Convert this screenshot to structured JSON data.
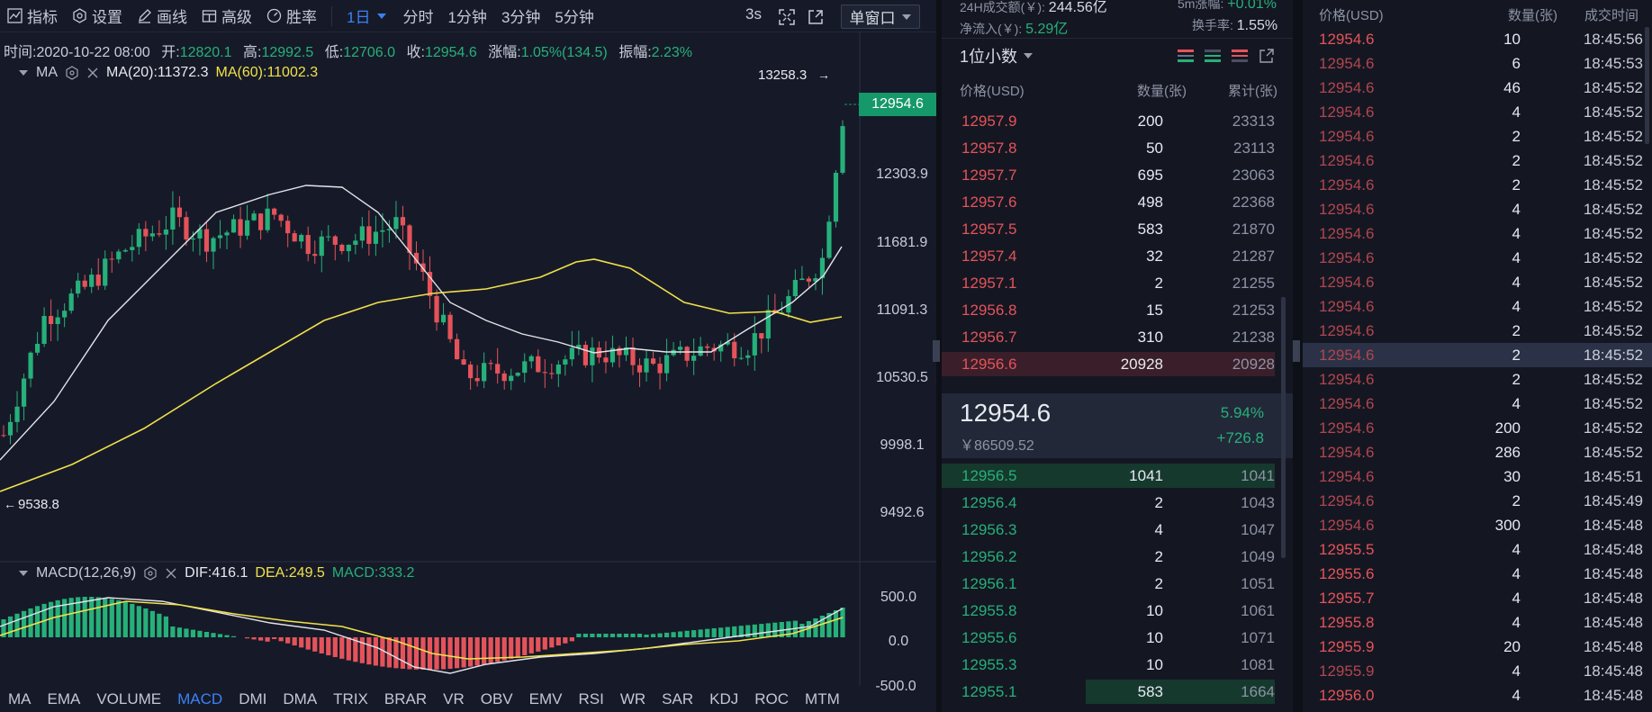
{
  "toolbar": {
    "items": [
      "指标",
      "设置",
      "画线",
      "高级",
      "胜率"
    ],
    "intervals": [
      "1日",
      "分时",
      "1分钟",
      "3分钟",
      "5分钟"
    ],
    "active_interval": "1日",
    "refresh": "3s",
    "window_mode": "单窗口"
  },
  "info": {
    "time_label": "时间:",
    "time": "2020-10-22 08:00",
    "open_label": "开:",
    "open": "12820.1",
    "high_label": "高:",
    "high": "12992.5",
    "low_label": "低:",
    "low": "12706.0",
    "close_label": "收:",
    "close": "12954.6",
    "chg_label": "涨幅:",
    "chg": "1.05%(134.5)",
    "amp_label": "振幅:",
    "amp": "2.23%"
  },
  "ma": {
    "name": "MA",
    "ma20": "MA(20):11372.3",
    "ma60": "MA(60):11002.3"
  },
  "macd_info": {
    "name": "MACD(12,26,9)",
    "dif": "DIF:416.1",
    "dea": "DEA:249.5",
    "macd": "MACD:333.2"
  },
  "price_axis": [
    "12303.9",
    "11681.9",
    "11091.3",
    "10530.5",
    "9998.1",
    "9492.6"
  ],
  "current_price_badge": "12954.6",
  "max_marker": "13258.3",
  "min_marker": "9538.8",
  "macd_axis": [
    "500.0",
    "0.0",
    "-500.0"
  ],
  "indicator_tabs": [
    "MA",
    "EMA",
    "VOLUME",
    "MACD",
    "DMI",
    "DMA",
    "TRIX",
    "BRAR",
    "VR",
    "OBV",
    "EMV",
    "RSI",
    "WR",
    "SAR",
    "KDJ",
    "ROC",
    "MTM"
  ],
  "active_indicator": "MACD",
  "colors": {
    "up": "#26b07a",
    "down": "#e5535a",
    "accent": "#3b82f6",
    "ma20": "#e8e8ee",
    "ma60": "#f2e14b"
  },
  "orderbook": {
    "stats": {
      "vol_label": "24H成交额(￥):",
      "vol": "244.56亿",
      "chg5_label": "5m涨幅:",
      "chg5": "+0.01%",
      "inflow_label": "净流入(￥):",
      "inflow": "5.29亿",
      "turnover_label": "换手率:",
      "turnover": "1.55%"
    },
    "precision": "1位小数",
    "headers": [
      "价格(USD)",
      "数量(张)",
      "累计(张)"
    ],
    "asks": [
      [
        "12957.9",
        "200",
        "23313"
      ],
      [
        "12957.8",
        "50",
        "23113"
      ],
      [
        "12957.7",
        "695",
        "23063"
      ],
      [
        "12957.6",
        "498",
        "22368"
      ],
      [
        "12957.5",
        "583",
        "21870"
      ],
      [
        "12957.4",
        "32",
        "21287"
      ],
      [
        "12957.1",
        "2",
        "21255"
      ],
      [
        "12956.8",
        "15",
        "21253"
      ],
      [
        "12956.7",
        "310",
        "21238"
      ],
      [
        "12956.6",
        "20928",
        "20928"
      ]
    ],
    "last_price": "12954.6",
    "last_cny": "￥86509.52",
    "last_pct": "5.94%",
    "last_change": "+726.8",
    "bids": [
      [
        "12956.5",
        "1041",
        "1041"
      ],
      [
        "12956.4",
        "2",
        "1043"
      ],
      [
        "12956.3",
        "4",
        "1047"
      ],
      [
        "12956.2",
        "2",
        "1049"
      ],
      [
        "12956.1",
        "2",
        "1051"
      ],
      [
        "12955.8",
        "10",
        "1061"
      ],
      [
        "12955.6",
        "10",
        "1071"
      ],
      [
        "12955.3",
        "10",
        "1081"
      ],
      [
        "12955.1",
        "583",
        "1664"
      ]
    ]
  },
  "trades": {
    "headers": [
      "价格(USD)",
      "数量(张)",
      "成交时间"
    ],
    "rows": [
      [
        "12954.6",
        "10",
        "18:45:56"
      ],
      [
        "12954.6",
        "6",
        "18:45:53"
      ],
      [
        "12954.6",
        "46",
        "18:45:52"
      ],
      [
        "12954.6",
        "4",
        "18:45:52"
      ],
      [
        "12954.6",
        "2",
        "18:45:52"
      ],
      [
        "12954.6",
        "2",
        "18:45:52"
      ],
      [
        "12954.6",
        "2",
        "18:45:52"
      ],
      [
        "12954.6",
        "4",
        "18:45:52"
      ],
      [
        "12954.6",
        "4",
        "18:45:52"
      ],
      [
        "12954.6",
        "4",
        "18:45:52"
      ],
      [
        "12954.6",
        "4",
        "18:45:52"
      ],
      [
        "12954.6",
        "4",
        "18:45:52"
      ],
      [
        "12954.6",
        "2",
        "18:45:52"
      ],
      [
        "12954.6",
        "2",
        "18:45:52"
      ],
      [
        "12954.6",
        "2",
        "18:45:52"
      ],
      [
        "12954.6",
        "4",
        "18:45:52"
      ],
      [
        "12954.6",
        "200",
        "18:45:52"
      ],
      [
        "12954.6",
        "286",
        "18:45:52"
      ],
      [
        "12954.6",
        "30",
        "18:45:51"
      ],
      [
        "12954.6",
        "2",
        "18:45:49"
      ],
      [
        "12954.6",
        "300",
        "18:45:48"
      ],
      [
        "12955.5",
        "4",
        "18:45:48"
      ],
      [
        "12955.6",
        "4",
        "18:45:48"
      ],
      [
        "12955.7",
        "4",
        "18:45:48"
      ],
      [
        "12955.8",
        "4",
        "18:45:48"
      ],
      [
        "12955.9",
        "20",
        "18:45:48"
      ],
      [
        "12955.9",
        "4",
        "18:45:48"
      ],
      [
        "12956.0",
        "4",
        "18:45:48"
      ]
    ]
  }
}
